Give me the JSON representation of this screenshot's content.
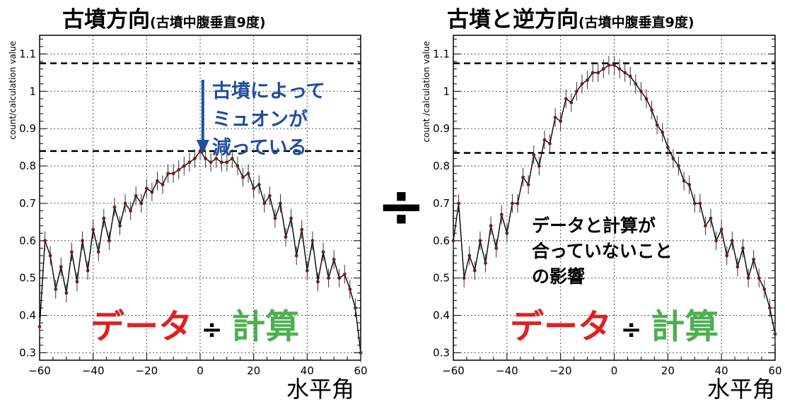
{
  "panels": [
    {
      "title_main": "古墳方向",
      "title_sub": "(古墳中腹垂直9度)",
      "ylabel": "count/calculation value",
      "xaxis_name": "水平角",
      "formula": {
        "data": "データ",
        "op": "÷",
        "calc": "計算"
      },
      "annotation_lines": [
        "古墳によって",
        "ミュオンが",
        "減っている"
      ],
      "annotation_color": "#1f4ea0"
    },
    {
      "title_main": "古墳と逆方向",
      "title_sub": "(古墳中腹垂直9度)",
      "ylabel": "count /calculation value",
      "xaxis_name": "水平角",
      "formula": {
        "data": "データ",
        "op": "÷",
        "calc": "計算"
      },
      "annotation_lines": [
        "データと計算が",
        "合っていないこと",
        "の影響"
      ],
      "annotation_color": "#000000"
    }
  ],
  "divide_sign": "÷",
  "colors": {
    "data_text": "#e02020",
    "calc_text": "#4caf50",
    "markers": "#7a1a1a",
    "line": "#000000"
  },
  "chart_data": [
    {
      "type": "line",
      "xlabel": "水平角",
      "ylabel": "count/calculation value",
      "xlim": [
        -60,
        60
      ],
      "ylim": [
        0.28,
        1.15
      ],
      "xticks": [
        -60,
        -40,
        -20,
        0,
        20,
        40,
        60
      ],
      "yticks": [
        0.3,
        0.4,
        0.5,
        0.6,
        0.7,
        0.8,
        0.9,
        1.0,
        1.1
      ],
      "ytick_labels": [
        "0.3",
        "0.4",
        "0.5",
        "0.6",
        "0.7",
        "0.8",
        "0.9",
        "1",
        "1.1"
      ],
      "grid": true,
      "reference_lines": [
        1.075,
        0.84
      ],
      "series": [
        {
          "x": [
            -60,
            -58,
            -56,
            -54,
            -52,
            -50,
            -48,
            -46,
            -44,
            -42,
            -40,
            -38,
            -36,
            -34,
            -32,
            -30,
            -28,
            -26,
            -24,
            -22,
            -20,
            -18,
            -16,
            -14,
            -12,
            -10,
            -8,
            -6,
            -4,
            -2,
            0,
            2,
            4,
            6,
            8,
            10,
            12,
            14,
            16,
            18,
            20,
            22,
            24,
            26,
            28,
            30,
            32,
            34,
            36,
            38,
            40,
            42,
            44,
            46,
            48,
            50,
            52,
            54,
            56,
            58,
            60
          ],
          "y": [
            0.37,
            0.6,
            0.56,
            0.47,
            0.53,
            0.46,
            0.57,
            0.49,
            0.6,
            0.52,
            0.63,
            0.57,
            0.66,
            0.6,
            0.69,
            0.64,
            0.7,
            0.68,
            0.72,
            0.7,
            0.74,
            0.73,
            0.76,
            0.75,
            0.78,
            0.78,
            0.79,
            0.8,
            0.81,
            0.82,
            0.84,
            0.82,
            0.81,
            0.82,
            0.81,
            0.81,
            0.82,
            0.8,
            0.77,
            0.78,
            0.74,
            0.75,
            0.7,
            0.72,
            0.66,
            0.7,
            0.61,
            0.66,
            0.56,
            0.63,
            0.52,
            0.6,
            0.49,
            0.57,
            0.5,
            0.55,
            0.5,
            0.51,
            0.47,
            0.42,
            0.3
          ]
        }
      ]
    },
    {
      "type": "line",
      "xlabel": "水平角",
      "ylabel": "count /calculation value",
      "xlim": [
        -60,
        60
      ],
      "ylim": [
        0.28,
        1.15
      ],
      "xticks": [
        -60,
        -40,
        -20,
        0,
        20,
        40,
        60
      ],
      "yticks": [
        0.3,
        0.4,
        0.5,
        0.6,
        0.7,
        0.8,
        0.9,
        1.0,
        1.1
      ],
      "ytick_labels": [
        "0.3",
        "0.4",
        "0.5",
        "0.6",
        "0.7",
        "0.8",
        "0.9",
        "1",
        "1.1"
      ],
      "grid": true,
      "reference_lines": [
        1.075,
        0.835
      ],
      "series": [
        {
          "x": [
            -60,
            -58,
            -56,
            -54,
            -52,
            -50,
            -48,
            -46,
            -44,
            -42,
            -40,
            -38,
            -36,
            -34,
            -32,
            -30,
            -28,
            -26,
            -24,
            -22,
            -20,
            -18,
            -16,
            -14,
            -12,
            -10,
            -8,
            -6,
            -4,
            -2,
            0,
            2,
            4,
            6,
            8,
            10,
            12,
            14,
            16,
            18,
            20,
            22,
            24,
            26,
            28,
            30,
            32,
            34,
            36,
            38,
            40,
            42,
            44,
            46,
            48,
            50,
            52,
            54,
            56,
            58,
            60
          ],
          "y": [
            0.6,
            0.7,
            0.5,
            0.56,
            0.52,
            0.6,
            0.54,
            0.64,
            0.58,
            0.67,
            0.62,
            0.7,
            0.7,
            0.77,
            0.75,
            0.83,
            0.8,
            0.87,
            0.86,
            0.93,
            0.92,
            0.98,
            0.97,
            1.0,
            1.02,
            1.03,
            1.05,
            1.05,
            1.06,
            1.07,
            1.07,
            1.06,
            1.05,
            1.04,
            1.02,
            1.0,
            0.98,
            0.95,
            0.91,
            0.89,
            0.85,
            0.82,
            0.8,
            0.76,
            0.75,
            0.7,
            0.7,
            0.64,
            0.66,
            0.6,
            0.63,
            0.56,
            0.6,
            0.53,
            0.58,
            0.5,
            0.55,
            0.5,
            0.47,
            0.42,
            0.35
          ]
        }
      ]
    }
  ]
}
